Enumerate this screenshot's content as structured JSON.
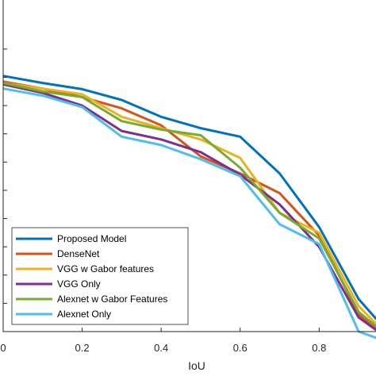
{
  "chart_data": {
    "type": "line",
    "title": "",
    "xlabel": "IoU",
    "ylabel": "",
    "xlim": [
      0,
      0.96
    ],
    "ylim": [
      0,
      1
    ],
    "x_ticks": [
      0,
      0.2,
      0.4,
      0.6,
      0.8
    ],
    "x_tick_labels": [
      "0",
      "0.2",
      "0.4",
      "0.6",
      "0.8"
    ],
    "grid": false,
    "legend_placement": "bottom-left",
    "x": [
      0,
      0.1,
      0.2,
      0.3,
      0.4,
      0.5,
      0.6,
      0.7,
      0.8,
      0.9,
      0.96
    ],
    "series": [
      {
        "name": "Proposed Model",
        "color": "#0072BD",
        "values": [
          0.905,
          0.88,
          0.858,
          0.82,
          0.76,
          0.72,
          0.69,
          0.56,
          0.37,
          0.115,
          0.02
        ]
      },
      {
        "name": "DenseNet",
        "color": "#D95319",
        "values": [
          0.885,
          0.86,
          0.83,
          0.79,
          0.73,
          0.62,
          0.56,
          0.49,
          0.34,
          0.06,
          0.0
        ]
      },
      {
        "name": "VGG w Gabor features",
        "color": "#EDB120",
        "values": [
          0.88,
          0.86,
          0.84,
          0.76,
          0.72,
          0.68,
          0.615,
          0.42,
          0.35,
          0.09,
          0.005
        ]
      },
      {
        "name": "VGG Only",
        "color": "#7E2F8E",
        "values": [
          0.875,
          0.845,
          0.8,
          0.71,
          0.68,
          0.635,
          0.555,
          0.45,
          0.3,
          0.05,
          -0.01
        ]
      },
      {
        "name": "Alexnet w Gabor Features",
        "color": "#77AC30",
        "values": [
          0.88,
          0.85,
          0.83,
          0.745,
          0.715,
          0.695,
          0.58,
          0.42,
          0.33,
          0.07,
          0.0
        ]
      },
      {
        "name": "Alexnet Only",
        "color": "#4DBEEE",
        "values": [
          0.86,
          0.835,
          0.795,
          0.69,
          0.66,
          0.61,
          0.55,
          0.38,
          0.31,
          0.0,
          -0.03
        ]
      }
    ]
  }
}
